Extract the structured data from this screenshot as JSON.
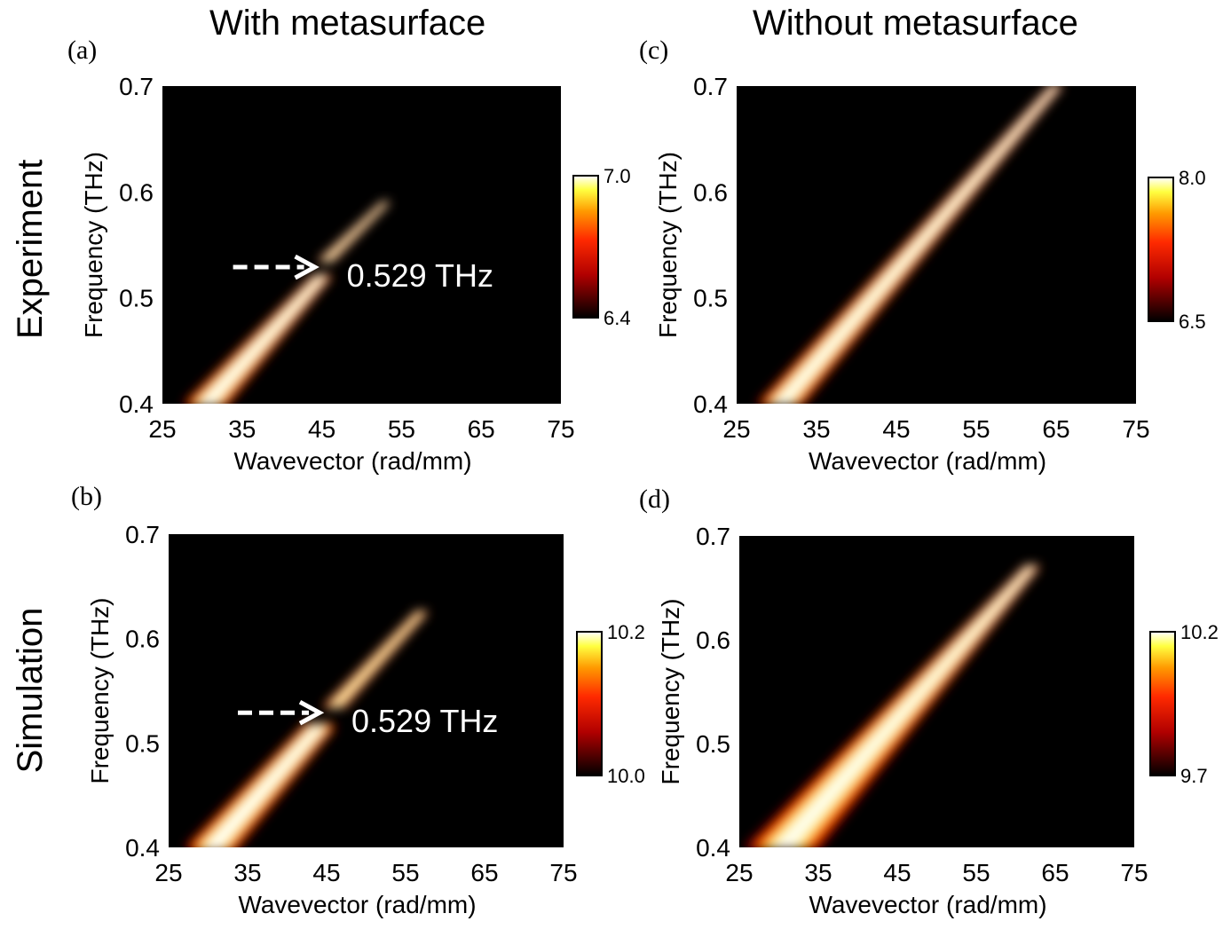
{
  "figure": {
    "col_titles": [
      "With metasurface",
      "Without metasurface"
    ],
    "row_titles": [
      "Experiment",
      "Simulation"
    ]
  },
  "chart_data": [
    {
      "id": "a",
      "panel_label": "(a)",
      "type": "heatmap",
      "xlabel": "Wavevector (rad/mm)",
      "ylabel": "Frequency (THz)",
      "xlim": [
        25,
        75
      ],
      "ylim": [
        0.4,
        0.7
      ],
      "xticks": [
        25,
        35,
        45,
        55,
        65,
        75
      ],
      "yticks": [
        0.4,
        0.5,
        0.6,
        0.7
      ],
      "colorbar": {
        "min": 6.4,
        "max": 7.0,
        "min_label": "6.4",
        "max_label": "7.0"
      },
      "annotation": {
        "text": "0.529 THz",
        "arrow_at": {
          "x": 45,
          "y": 0.529
        }
      },
      "bands": [
        {
          "start": {
            "x": 30.5,
            "y": 0.4
          },
          "end": {
            "x": 45,
            "y": 0.52
          },
          "width_start": 5.0,
          "width_end": 1.8,
          "intensity": 1.0
        },
        {
          "start": {
            "x": 45.5,
            "y": 0.535
          },
          "end": {
            "x": 53,
            "y": 0.59
          },
          "width_start": 1.8,
          "width_end": 0.8,
          "intensity": 0.8
        }
      ]
    },
    {
      "id": "b",
      "panel_label": "(b)",
      "type": "heatmap",
      "xlabel": "Wavevector (rad/mm)",
      "ylabel": "Frequency (THz)",
      "xlim": [
        25,
        75
      ],
      "ylim": [
        0.4,
        0.7
      ],
      "xticks": [
        25,
        35,
        45,
        55,
        65,
        75
      ],
      "yticks": [
        0.4,
        0.5,
        0.6,
        0.7
      ],
      "colorbar": {
        "min": 10.0,
        "max": 10.2,
        "min_label": "10.0",
        "max_label": "10.2"
      },
      "annotation": {
        "text": "0.529 THz",
        "arrow_at": {
          "x": 45,
          "y": 0.529
        }
      },
      "bands": [
        {
          "start": {
            "x": 30.5,
            "y": 0.4
          },
          "end": {
            "x": 44,
            "y": 0.515
          },
          "width_start": 5.5,
          "width_end": 3.0,
          "intensity": 1.0
        },
        {
          "start": {
            "x": 46,
            "y": 0.535
          },
          "end": {
            "x": 57,
            "y": 0.625
          },
          "width_start": 2.5,
          "width_end": 1.2,
          "intensity": 0.7
        }
      ]
    },
    {
      "id": "c",
      "panel_label": "(c)",
      "type": "heatmap",
      "xlabel": "Wavevector (rad/mm)",
      "ylabel": "Frequency (THz)",
      "xlim": [
        25,
        75
      ],
      "ylim": [
        0.4,
        0.7
      ],
      "xticks": [
        25,
        35,
        45,
        55,
        65,
        75
      ],
      "yticks": [
        0.4,
        0.5,
        0.6,
        0.7
      ],
      "colorbar": {
        "min": 6.5,
        "max": 8.0,
        "min_label": "6.5",
        "max_label": "8.0"
      },
      "bands": [
        {
          "start": {
            "x": 30.5,
            "y": 0.4
          },
          "end": {
            "x": 65,
            "y": 0.7
          },
          "width_start": 5.5,
          "width_end": 1.2,
          "intensity": 0.95
        }
      ]
    },
    {
      "id": "d",
      "panel_label": "(d)",
      "type": "heatmap",
      "xlabel": "Wavevector (rad/mm)",
      "ylabel": "Frequency (THz)",
      "xlim": [
        25,
        75
      ],
      "ylim": [
        0.4,
        0.7
      ],
      "xticks": [
        25,
        35,
        45,
        55,
        65,
        75
      ],
      "yticks": [
        0.4,
        0.5,
        0.6,
        0.7
      ],
      "colorbar": {
        "min": 9.7,
        "max": 10.2,
        "min_label": "9.7",
        "max_label": "10.2"
      },
      "bands": [
        {
          "start": {
            "x": 30.5,
            "y": 0.4
          },
          "end": {
            "x": 62,
            "y": 0.67
          },
          "width_start": 9.0,
          "width_end": 1.5,
          "intensity": 0.9
        }
      ]
    }
  ]
}
